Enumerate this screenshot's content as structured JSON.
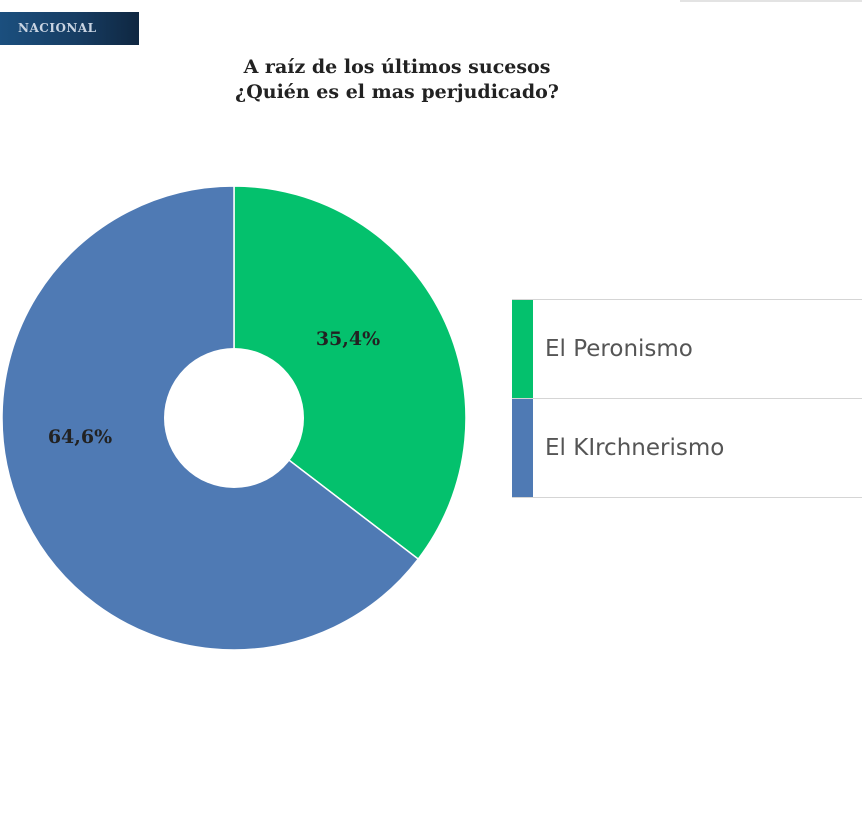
{
  "section_tag": "NACIONAL",
  "chart_data": {
    "type": "pie",
    "title_line1": "A raíz de los últimos sucesos",
    "title_line2": "¿Quién es el mas perjudicado?",
    "slices": [
      {
        "label": "El Peronismo",
        "value": 35.4,
        "display": "35,4%",
        "color": "#04c16d"
      },
      {
        "label": "El KIrchnerismo",
        "value": 64.6,
        "display": "64,6%",
        "color": "#4f7ab4"
      }
    ],
    "legend_position": "right",
    "donut": true
  }
}
